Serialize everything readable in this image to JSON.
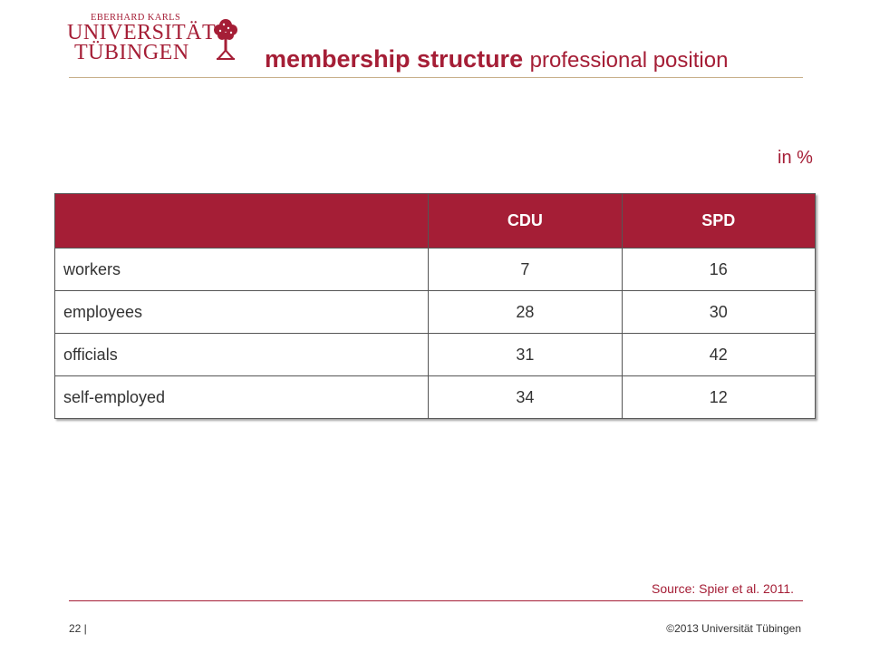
{
  "logo": {
    "line1": "EBERHARD KARLS",
    "line2": "UNIVERSITÄT",
    "line3": "TÜBINGEN",
    "emblem_icon": "tree-emblem-icon",
    "color": "#a51e36"
  },
  "header": {
    "title_bold": "membership structure",
    "title_rest": "professional position"
  },
  "unit_label": "in %",
  "table": {
    "columns": [
      "",
      "CDU",
      "SPD"
    ],
    "rows": [
      {
        "label": "workers",
        "cdu": "7",
        "spd": "16"
      },
      {
        "label": "employees",
        "cdu": "28",
        "spd": "30"
      },
      {
        "label": "officials",
        "cdu": "31",
        "spd": "42"
      },
      {
        "label": "self-employed",
        "cdu": "34",
        "spd": "12"
      }
    ]
  },
  "footer": {
    "source": "Source: Spier et al. 2011.",
    "page": "22 |",
    "copyright": "©2013 Universität Tübingen"
  }
}
